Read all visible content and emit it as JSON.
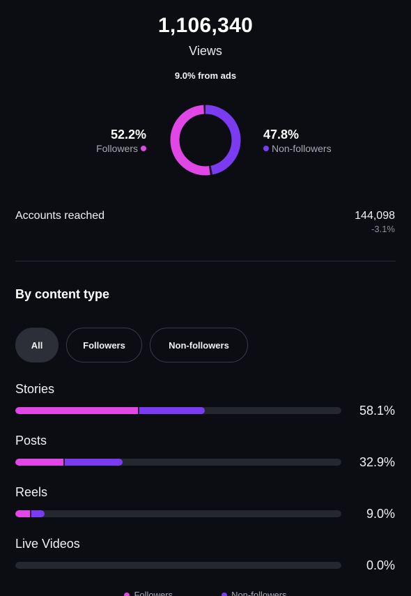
{
  "summary": {
    "views_value": "1,106,340",
    "views_label": "Views",
    "ads_note": "9.0% from ads"
  },
  "audience_split": {
    "followers": {
      "pct": "52.2%",
      "label": "Followers",
      "value": 52.2,
      "color": "#e146e6"
    },
    "non_followers": {
      "pct": "47.8%",
      "label": "Non-followers",
      "value": 47.8,
      "color": "#7a3bf1"
    }
  },
  "accounts_reached": {
    "label": "Accounts reached",
    "value": "144,098",
    "change": "-3.1%"
  },
  "content_type": {
    "title": "By content type",
    "filters": [
      {
        "label": "All",
        "active": true
      },
      {
        "label": "Followers",
        "active": false
      },
      {
        "label": "Non-followers",
        "active": false
      }
    ],
    "rows": [
      {
        "label": "Stories",
        "pct": "58.1%",
        "followers_share": 0.377,
        "non_followers_share": 0.204
      },
      {
        "label": "Posts",
        "pct": "32.9%",
        "followers_share": 0.147,
        "non_followers_share": 0.182
      },
      {
        "label": "Reels",
        "pct": "9.0%",
        "followers_share": 0.044,
        "non_followers_share": 0.046
      },
      {
        "label": "Live Videos",
        "pct": "0.0%",
        "followers_share": 0.0,
        "non_followers_share": 0.0
      }
    ]
  },
  "bottom_legend": {
    "followers": "Followers",
    "non_followers": "Non-followers"
  },
  "colors": {
    "background": "#0b0d12",
    "followers": "#e146e6",
    "non_followers": "#7a3bf1",
    "track": "#25272e"
  }
}
